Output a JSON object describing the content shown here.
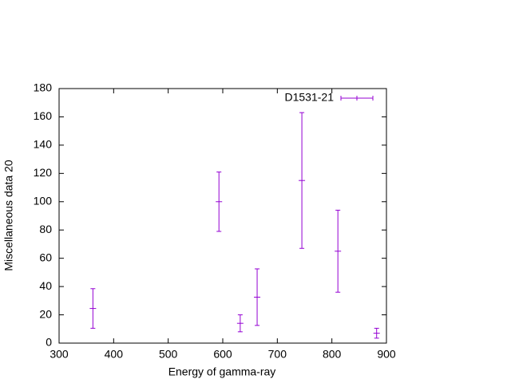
{
  "chart_data": {
    "type": "errorbar",
    "xlabel": "Energy of gamma-ray",
    "ylabel": "Miscellaneous data 20",
    "xlim": [
      300,
      900
    ],
    "xticks": [
      300,
      400,
      500,
      600,
      700,
      800,
      900
    ],
    "ylim": [
      0,
      180
    ],
    "yticks": [
      0,
      20,
      40,
      60,
      80,
      100,
      120,
      140,
      160,
      180
    ],
    "legend": "upper right",
    "series": [
      {
        "name": "D1531-21",
        "color": "#9400d3",
        "x": [
          362,
          593,
          632,
          663,
          745,
          811,
          882
        ],
        "values": [
          24.5,
          100,
          14,
          32.5,
          115,
          65,
          7
        ],
        "errors": [
          14,
          21,
          6,
          20,
          48,
          29,
          3.5
        ]
      }
    ]
  }
}
